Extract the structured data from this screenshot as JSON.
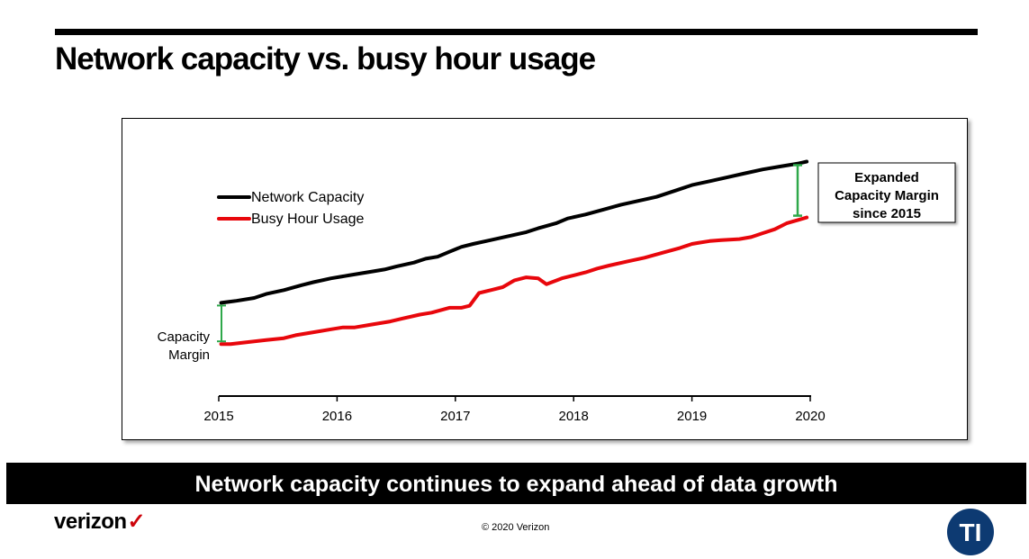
{
  "page": {
    "title": "Network capacity vs. busy hour usage",
    "banner": "Network capacity continues to expand ahead of data growth",
    "brand": "verizon",
    "brand_mark": "✓",
    "copyright": "© 2020 Verizon",
    "logo_text": "TI"
  },
  "chart_data": {
    "type": "line",
    "title": "",
    "xlabel": "",
    "ylabel": "",
    "xlim": [
      2015,
      2020
    ],
    "ylim": [
      0,
      100
    ],
    "xticks": [
      "2015",
      "2016",
      "2017",
      "2018",
      "2019",
      "2020"
    ],
    "grid": false,
    "legend": "top-left",
    "series": [
      {
        "name": "Network Capacity",
        "color": "#000000",
        "x": [
          2015.02,
          2015.15,
          2015.3,
          2015.4,
          2015.55,
          2015.7,
          2015.8,
          2015.95,
          2016.1,
          2016.25,
          2016.4,
          2016.5,
          2016.65,
          2016.75,
          2016.85,
          2016.95,
          2017.05,
          2017.15,
          2017.3,
          2017.45,
          2017.6,
          2017.7,
          2017.85,
          2017.95,
          2018.1,
          2018.25,
          2018.4,
          2018.55,
          2018.7,
          2018.85,
          2019.0,
          2019.15,
          2019.3,
          2019.45,
          2019.6,
          2019.75,
          2019.9,
          2019.97
        ],
        "values": [
          31.0,
          32.0,
          33.5,
          35.5,
          37.5,
          40.0,
          41.5,
          43.5,
          45.0,
          46.5,
          48.0,
          49.5,
          51.5,
          53.5,
          54.5,
          57.0,
          59.5,
          61.0,
          63.0,
          65.0,
          67.0,
          69.0,
          71.5,
          74.0,
          76.0,
          78.5,
          81.0,
          83.0,
          85.0,
          88.0,
          91.0,
          93.0,
          95.0,
          97.0,
          99.0,
          100.5,
          102.0,
          103.0
        ]
      },
      {
        "name": "Busy Hour Usage",
        "color": "#e8070c",
        "x": [
          2015.02,
          2015.1,
          2015.25,
          2015.4,
          2015.55,
          2015.65,
          2015.8,
          2015.95,
          2016.05,
          2016.15,
          2016.3,
          2016.45,
          2016.55,
          2016.7,
          2016.8,
          2016.95,
          2017.05,
          2017.12,
          2017.2,
          2017.3,
          2017.4,
          2017.5,
          2017.6,
          2017.7,
          2017.77,
          2017.9,
          2018.0,
          2018.1,
          2018.2,
          2018.3,
          2018.45,
          2018.6,
          2018.75,
          2018.9,
          2019.0,
          2019.05,
          2019.15,
          2019.25,
          2019.4,
          2019.5,
          2019.6,
          2019.7,
          2019.8,
          2019.97
        ],
        "values": [
          10.0,
          10.0,
          11.0,
          12.0,
          13.0,
          14.5,
          16.0,
          17.5,
          18.5,
          18.5,
          20.0,
          21.5,
          23.0,
          25.0,
          26.0,
          28.5,
          28.5,
          29.5,
          36.0,
          37.5,
          39.0,
          42.5,
          44.0,
          43.5,
          40.5,
          43.5,
          45.0,
          46.5,
          48.5,
          50.0,
          52.0,
          54.0,
          56.5,
          59.0,
          61.0,
          61.5,
          62.5,
          63.0,
          63.5,
          64.5,
          66.5,
          68.5,
          71.5,
          74.5
        ]
      }
    ],
    "annotations": {
      "left_label": [
        "Capacity",
        "Margin"
      ],
      "right_label": [
        "Expanded",
        "Capacity Margin",
        "since 2015"
      ]
    }
  }
}
